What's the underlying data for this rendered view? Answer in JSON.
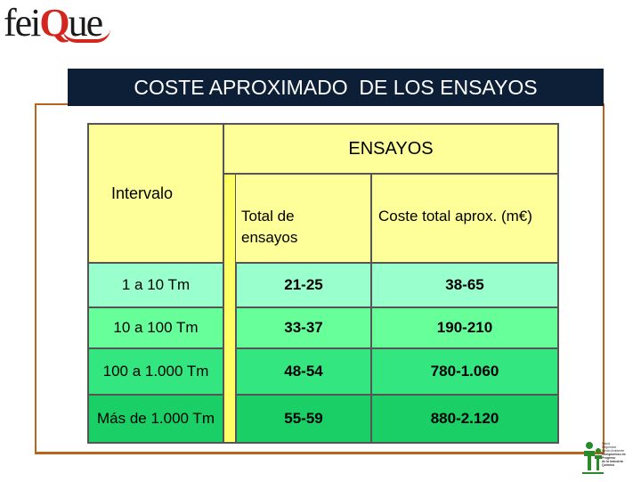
{
  "logo": {
    "text_before": "fei",
    "text_q": "Q",
    "text_after": "ue"
  },
  "title": "COSTE APROXIMADO  DE LOS ENSAYOS",
  "table": {
    "group_header": "ENSAYOS",
    "row_header": "Intervalo",
    "col1_header": "Total de ensayos",
    "col2_header": "Coste total aprox. (m€)",
    "rows": [
      {
        "intervalo": "1 a 10 Tm",
        "total": "21-25",
        "coste": "38-65",
        "bg": "#99ffcc"
      },
      {
        "intervalo": "10 a 100 Tm",
        "total": "33-37",
        "coste": "190-210",
        "bg": "#66ff99"
      },
      {
        "intervalo": "100 a 1.000 Tm",
        "total": "48-54",
        "coste": "780-1.060",
        "bg": "#33e680"
      },
      {
        "intervalo": "Más de 1.000 Tm",
        "total": "55-59",
        "coste": "880-2.120",
        "bg": "#1ad066"
      }
    ]
  },
  "badge": {
    "line1": "Salud",
    "line2": "Seguridad",
    "line3": "Medio Ambiente",
    "line4": "Compromiso de Progreso",
    "line5": "de la Industria Química"
  },
  "colors": {
    "title_bg": "#0d1f36",
    "frame": "#b5651d",
    "header_bg": "#ffff99",
    "stripe": "#ffff66"
  }
}
